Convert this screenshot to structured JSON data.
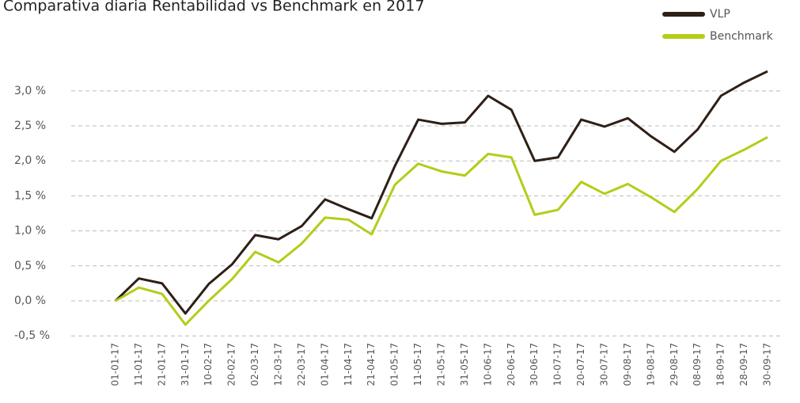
{
  "chart_data": {
    "type": "line",
    "title": "Comparativa diaria Rentabilidad vs Benchmark en 2017",
    "categories": [
      "01-01-17",
      "11-01-17",
      "21-01-17",
      "31-01-17",
      "10-02-17",
      "20-02-17",
      "02-03-17",
      "12-03-17",
      "22-03-17",
      "01-04-17",
      "11-04-17",
      "21-04-17",
      "01-05-17",
      "11-05-17",
      "21-05-17",
      "31-05-17",
      "10-06-17",
      "20-06-17",
      "30-06-17",
      "10-07-17",
      "20-07-17",
      "30-07-17",
      "09-08-17",
      "19-08-17",
      "29-08-17",
      "08-09-17",
      "18-09-17",
      "28-09-17",
      "30-09-17"
    ],
    "series": [
      {
        "name": "VLP",
        "color": "#2e1f17",
        "values": [
          0,
          0.32,
          0.25,
          -0.18,
          0.24,
          0.52,
          0.94,
          0.88,
          1.07,
          1.45,
          1.31,
          1.18,
          1.93,
          2.59,
          2.53,
          2.55,
          2.93,
          2.73,
          2.0,
          2.05,
          2.59,
          2.49,
          2.61,
          2.35,
          2.13,
          2.45,
          2.93,
          3.12,
          3.28
        ]
      },
      {
        "name": "Benchmark",
        "color": "#b5cc18",
        "values": [
          0,
          0.19,
          0.1,
          -0.34,
          0.0,
          0.31,
          0.7,
          0.55,
          0.82,
          1.19,
          1.16,
          0.95,
          1.66,
          1.96,
          1.85,
          1.79,
          2.1,
          2.05,
          1.23,
          1.3,
          1.7,
          1.53,
          1.67,
          1.48,
          1.27,
          1.6,
          2.0,
          2.16,
          2.34
        ]
      }
    ],
    "ylim": [
      -0.5,
      3.3
    ],
    "yticks": [
      {
        "value": -0.5,
        "label": "-0,5 %"
      },
      {
        "value": 0,
        "label": "0,0 %"
      },
      {
        "value": 0.5,
        "label": "0,5 %"
      },
      {
        "value": 1,
        "label": "1,0 %"
      },
      {
        "value": 1.5,
        "label": "1,5 %"
      },
      {
        "value": 2,
        "label": "2,0 %"
      },
      {
        "value": 2.5,
        "label": "2,5 %"
      },
      {
        "value": 3,
        "label": "3,0 %"
      }
    ],
    "grid": true,
    "legend": "top-right"
  }
}
